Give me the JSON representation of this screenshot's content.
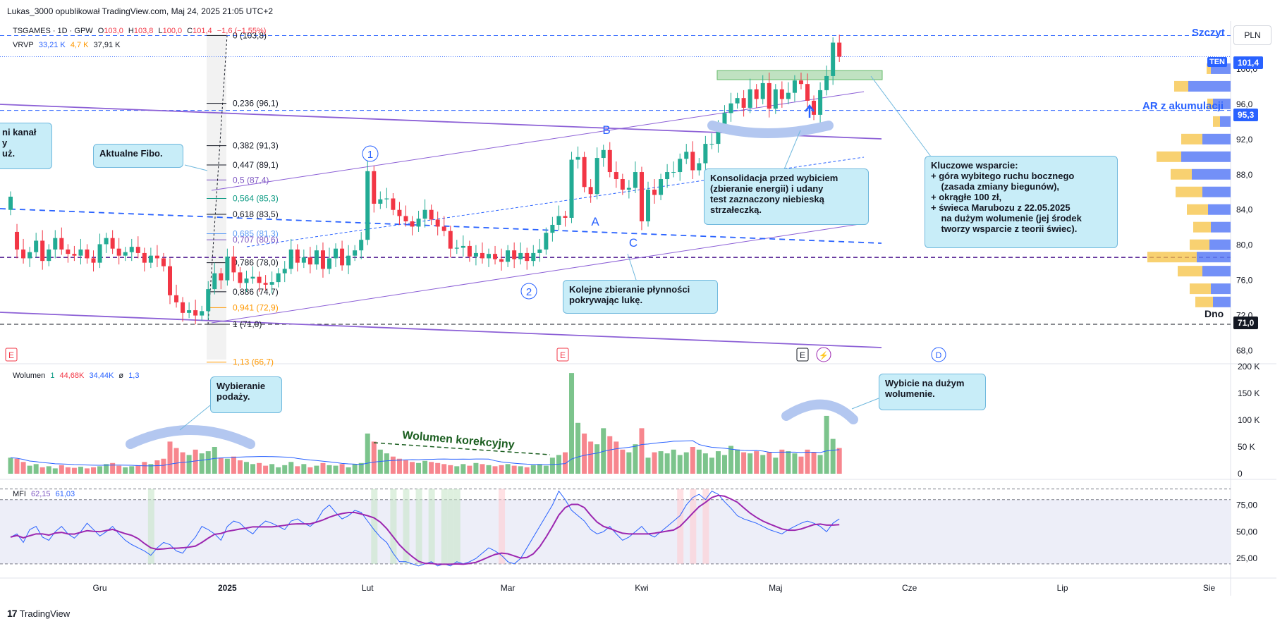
{
  "caption": "Lukas_3000 opublikował TradingView.com, Maj 24, 2025 21:05 UTC+2",
  "branding": "TradingView",
  "currency_button": "PLN",
  "legend": {
    "symbol": "TSGAMES · 1D · GPW",
    "o_label": "O",
    "o_val": "103,0",
    "h_label": "H",
    "h_val": "103,8",
    "l_label": "L",
    "l_val": "100,0",
    "c_label": "C",
    "c_val": "101,4",
    "change": "−1,6 (−1,55%)",
    "vrvp": "VRVP",
    "vrvp_v1": "33,21 K",
    "vrvp_v2": "4,7 K",
    "vrvp_v3": "37,91 K",
    "vol_title": "Wolumen",
    "vol_len": "1",
    "vol_v1": "44,68K",
    "vol_v2": "34,44K",
    "vol_v3": "ø",
    "vol_v4": "1,3",
    "mfi_title": "MFI",
    "mfi_v1": "62,15",
    "mfi_v2": "61,03"
  },
  "colors": {
    "up": "#22ab94",
    "down": "#f23645",
    "up_vol": "#7cc48c",
    "down_vol": "#f7868e",
    "channel": "#8c60d6",
    "fib": "#131722",
    "blue_dash": "#2962ff",
    "note_bg": "#c8edf8",
    "mfi_line": "#9c27b0",
    "mfi_thin": "#2962ff"
  },
  "notes": {
    "fibo": "Aktualne Fibo.",
    "kanal": "ni kanał\ny\nuż.",
    "konsolidacja": "Konsolidacja przed wybiciem\n(zbieranie energii) i udany\ntest zaznaczony niebieską\nstrzałeczką.",
    "wsparcie": "Kluczowe wsparcie:\n+ góra wybitego ruchu bocznego\n    (zasada zmiany biegunów),\n+ okrągłe 100 zł,\n+ świeca Marubozu z 22.05.2025\n    na dużym wolumenie (jej środek\n    tworzy wsparcie z teorii świec).",
    "plynnosc": "Kolejne zbieranie płynności\npokrywając lukę.",
    "podaz": "Wybieranie\npodaży.",
    "wybicie": "Wybicie na dużym\nwolumenie.",
    "wolumen_korekcyjny": "Wolumen korekcyjny"
  },
  "labels": {
    "szczyt": "Szczyt",
    "ar": "AR z akumulacji",
    "dno": "Dno",
    "ten": "TEN",
    "A": "A",
    "B": "B",
    "C": "C",
    "one": "1",
    "two": "2",
    "E": "E",
    "D": "D"
  },
  "price_tags": {
    "current": "101,4",
    "ar": "95,3",
    "dno": "71,0"
  },
  "chart_data": {
    "type": "candlestick",
    "symbol": "TSGAMES",
    "interval": "1D",
    "price_axis": {
      "range": [
        67,
        104
      ],
      "ticks": [
        "100,0",
        "96,0",
        "92,0",
        "88,0",
        "84,0",
        "80,0",
        "76,0",
        "72,0",
        "68,0"
      ],
      "tick_values": [
        100,
        96,
        92,
        88,
        84,
        80,
        76,
        72,
        68
      ]
    },
    "volume_axis": {
      "range": [
        0,
        200000
      ],
      "ticks": [
        "200 K",
        "150 K",
        "100 K",
        "50 K",
        "0"
      ],
      "tick_values": [
        200000,
        150000,
        100000,
        50000,
        0
      ]
    },
    "mfi_axis": {
      "range": [
        10,
        95
      ],
      "ticks": [
        "75,00",
        "50,00",
        "25,00"
      ],
      "tick_values": [
        75,
        50,
        25
      ],
      "bands": [
        20,
        80,
        90
      ]
    },
    "time_axis": {
      "labels": [
        "Gru",
        "2025",
        "Lut",
        "Mar",
        "Kwi",
        "Maj",
        "Cze",
        "Lip",
        "Sie"
      ],
      "label_bar_index": [
        14,
        34,
        56,
        78,
        99,
        120,
        141,
        165,
        188
      ]
    },
    "fib_levels": [
      {
        "label": "0 (103,8)",
        "value": 103.8,
        "color": "#131722"
      },
      {
        "label": "0,236 (96,1)",
        "value": 96.1,
        "color": "#131722"
      },
      {
        "label": "0,382 (91,3)",
        "value": 91.3,
        "color": "#131722"
      },
      {
        "label": "0,447 (89,1)",
        "value": 89.1,
        "color": "#131722"
      },
      {
        "label": "0,5 (87,4)",
        "value": 87.4,
        "color": "#7e57c2"
      },
      {
        "label": "0,564 (85,3)",
        "value": 85.3,
        "color": "#089981"
      },
      {
        "label": "0,618 (83,5)",
        "value": 83.5,
        "color": "#131722"
      },
      {
        "label": "0,685 (81,3)",
        "value": 81.3,
        "color": "#5b9cf6"
      },
      {
        "label": "0,707 (80,6)",
        "value": 80.6,
        "color": "#7e57c2"
      },
      {
        "label": "0,786 (78,0)",
        "value": 78.0,
        "color": "#131722"
      },
      {
        "label": "0,886 (74,7)",
        "value": 74.7,
        "color": "#131722"
      },
      {
        "label": "0,941 (72,9)",
        "value": 72.9,
        "color": "#ff9800"
      },
      {
        "label": "1 (71,0)",
        "value": 71.0,
        "color": "#131722"
      },
      {
        "label": "1,13 (66,7)",
        "value": 66.7,
        "color": "#ff9800"
      }
    ],
    "levels": {
      "szczyt": 103.8,
      "current": 101.4,
      "ar": 95.3,
      "dno": 71.0,
      "purple_dash": 78.6
    },
    "closes": [
      85.5,
      79.5,
      78.5,
      79.2,
      80.5,
      78.2,
      79.5,
      80.8,
      79.5,
      79.0,
      78.8,
      79.5,
      78.5,
      78.0,
      80.1,
      80.8,
      79.6,
      78.8,
      79.2,
      79.8,
      79.1,
      78.0,
      78.8,
      78.5,
      77.6,
      74.3,
      73.5,
      72.3,
      72.6,
      72.0,
      72.5,
      75.0,
      76.8,
      76.0,
      78.7,
      76.9,
      75.7,
      76.2,
      76.4,
      75.7,
      75.5,
      75.8,
      76.8,
      77.3,
      79.5,
      78.0,
      78.6,
      77.8,
      79.4,
      77.3,
      78.5,
      79.6,
      77.7,
      78.8,
      79.4,
      80.6,
      88.4,
      84.7,
      85.2,
      85.3,
      84.0,
      83.3,
      82.7,
      82.1,
      83.0,
      84.0,
      82.9,
      82.1,
      81.6,
      79.6,
      79.7,
      79.9,
      78.7,
      79.1,
      78.5,
      79.0,
      78.4,
      78.1,
      79.4,
      78.4,
      79.1,
      78.2,
      79.1,
      79.5,
      81.4,
      82.3,
      83.3,
      83.1,
      89.7,
      90.0,
      86.6,
      85.8,
      89.9,
      90.8,
      88.3,
      87.5,
      86.3,
      86.5,
      88.3,
      82.7,
      86.3,
      85.7,
      87.5,
      88.3,
      88.3,
      89.8,
      90.6,
      88.5,
      89.3,
      91.5,
      91.5,
      93.6,
      95.0,
      96.1,
      96.7,
      95.6,
      97.7,
      96.6,
      98.4,
      95.5,
      97.7,
      96.6,
      97.3,
      98.7,
      98.3,
      96.4,
      94.8,
      97.6,
      99.2,
      103.0,
      101.4
    ],
    "opens": [
      84.0,
      81.5,
      79.5,
      78.5,
      79.2,
      80.5,
      78.2,
      79.5,
      80.8,
      79.5,
      79.0,
      78.8,
      79.5,
      78.5,
      78.0,
      80.1,
      80.8,
      79.6,
      78.8,
      79.2,
      79.8,
      79.1,
      78.0,
      78.8,
      78.5,
      77.6,
      74.3,
      73.5,
      72.3,
      72.6,
      72.0,
      72.5,
      75.0,
      76.8,
      76.0,
      78.7,
      76.9,
      75.7,
      76.2,
      76.4,
      75.7,
      75.5,
      75.8,
      76.8,
      77.3,
      79.5,
      78.0,
      78.6,
      77.8,
      79.4,
      77.3,
      78.5,
      79.6,
      77.7,
      78.8,
      79.4,
      80.6,
      88.4,
      84.7,
      85.2,
      85.3,
      84.0,
      83.3,
      82.7,
      82.1,
      83.0,
      84.0,
      82.9,
      82.1,
      81.6,
      79.6,
      79.7,
      79.9,
      78.7,
      79.1,
      78.5,
      79.0,
      78.4,
      78.1,
      79.4,
      78.4,
      79.1,
      78.2,
      79.1,
      79.5,
      81.4,
      82.3,
      83.3,
      83.1,
      89.7,
      90.0,
      86.6,
      85.8,
      89.9,
      90.8,
      88.3,
      87.5,
      86.3,
      86.5,
      88.3,
      82.7,
      86.3,
      85.7,
      87.5,
      88.3,
      88.3,
      89.8,
      90.6,
      88.5,
      89.3,
      91.5,
      91.5,
      93.6,
      95.0,
      96.1,
      96.7,
      95.6,
      97.7,
      96.6,
      98.4,
      95.5,
      97.7,
      96.6,
      97.3,
      98.7,
      98.3,
      96.4,
      94.8,
      97.6,
      99.2,
      103.0
    ],
    "volumes_k": [
      30,
      28,
      22,
      15,
      18,
      12,
      14,
      10,
      16,
      12,
      11,
      13,
      10,
      12,
      14,
      18,
      20,
      15,
      12,
      14,
      16,
      22,
      18,
      25,
      28,
      60,
      48,
      40,
      35,
      45,
      38,
      42,
      50,
      30,
      28,
      32,
      25,
      22,
      18,
      20,
      15,
      18,
      12,
      16,
      22,
      14,
      18,
      12,
      15,
      20,
      16,
      15,
      18,
      12,
      18,
      20,
      75,
      60,
      45,
      38,
      32,
      28,
      25,
      22,
      20,
      24,
      22,
      20,
      18,
      16,
      14,
      18,
      15,
      20,
      18,
      16,
      14,
      16,
      18,
      15,
      14,
      12,
      16,
      18,
      15,
      30,
      35,
      40,
      188,
      95,
      75,
      60,
      55,
      85,
      70,
      60,
      45,
      40,
      55,
      85,
      30,
      40,
      42,
      38,
      45,
      35,
      40,
      50,
      45,
      38,
      30,
      42,
      35,
      52,
      45,
      40,
      38,
      42,
      35,
      40,
      30,
      45,
      42,
      38,
      32,
      45,
      40,
      35,
      108,
      65,
      48
    ],
    "mfi": [
      45,
      48,
      40,
      52,
      55,
      45,
      42,
      50,
      55,
      48,
      44,
      50,
      58,
      52,
      46,
      50,
      55,
      48,
      42,
      38,
      35,
      32,
      28,
      35,
      40,
      38,
      32,
      30,
      38,
      45,
      55,
      52,
      48,
      42,
      55,
      60,
      58,
      52,
      48,
      55,
      60,
      58,
      55,
      52,
      60,
      62,
      58,
      55,
      60,
      70,
      75,
      68,
      62,
      65,
      70,
      68,
      60,
      52,
      45,
      40,
      30,
      22,
      22,
      20,
      18,
      20,
      22,
      18,
      20,
      18,
      22,
      20,
      22,
      25,
      30,
      35,
      32,
      28,
      22,
      20,
      25,
      35,
      45,
      55,
      65,
      75,
      88,
      80,
      70,
      65,
      60,
      52,
      48,
      50,
      55,
      48,
      42,
      45,
      50,
      55,
      48,
      45,
      50,
      55,
      60,
      65,
      75,
      82,
      85,
      80,
      88,
      85,
      78,
      72,
      65,
      62,
      60,
      58,
      55,
      52,
      50,
      48,
      52,
      55,
      58,
      60,
      58,
      55,
      50,
      58,
      62
    ]
  }
}
